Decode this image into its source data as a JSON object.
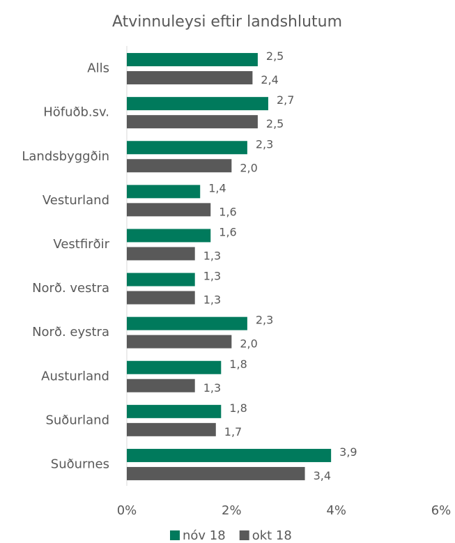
{
  "chart_data": {
    "type": "hbar",
    "title": "Atvinnuleysi eftir landshlutum",
    "categories": [
      "Alls",
      "Höfuðb.sv.",
      "Landsbyggðin",
      "Vesturland",
      "Vestfirðir",
      "Norð. vestra",
      "Norð. eystra",
      "Austurland",
      "Suðurland",
      "Suðurnes"
    ],
    "series": [
      {
        "name": "nóv 18",
        "color": "#007a5c",
        "values": [
          2.5,
          2.7,
          2.3,
          1.4,
          1.6,
          1.3,
          2.3,
          1.8,
          1.8,
          3.9
        ],
        "value_labels": [
          "2,5",
          "2,7",
          "2,3",
          "1,4",
          "1,6",
          "1,3",
          "2,3",
          "1,8",
          "1,8",
          "3,9"
        ]
      },
      {
        "name": "okt 18",
        "color": "#595959",
        "values": [
          2.4,
          2.5,
          2.0,
          1.6,
          1.3,
          1.3,
          2.0,
          1.3,
          1.7,
          3.4
        ],
        "value_labels": [
          "2,4",
          "2,5",
          "2,0",
          "1,6",
          "1,3",
          "1,3",
          "2,0",
          "1,3",
          "1,7",
          "3,4"
        ]
      }
    ],
    "xlim": [
      0,
      6
    ],
    "xticks": [
      {
        "value": 0,
        "label": "0%"
      },
      {
        "value": 2,
        "label": "2%"
      },
      {
        "value": 4,
        "label": "4%"
      },
      {
        "value": 6,
        "label": "6%"
      }
    ],
    "legend": "bottom"
  }
}
